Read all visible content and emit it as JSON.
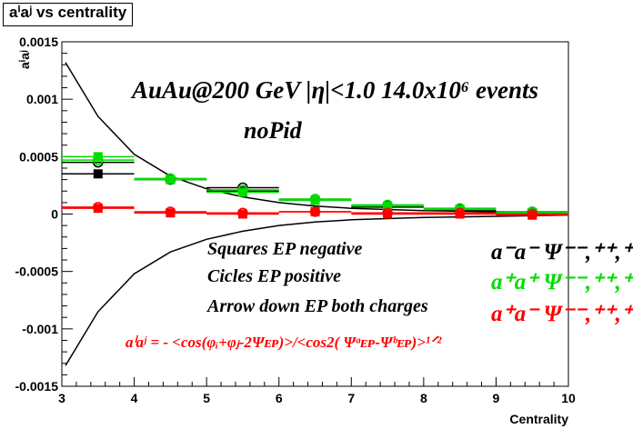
{
  "title": "aⁱaʲ vs centrality",
  "chart_data": {
    "type": "scatter",
    "title": "aⁱaʲ vs centrality",
    "xlabel": "Centrality",
    "ylabel": "aⁱaʲ",
    "xlim": [
      3,
      10
    ],
    "ylim": [
      -0.0015,
      0.0015
    ],
    "x_ticks": [
      "3",
      "4",
      "5",
      "6",
      "7",
      "8",
      "9",
      "10"
    ],
    "y_ticks": [
      "-0.0015",
      "-0.001",
      "-0.0005",
      "0",
      "0.0005",
      "0.001",
      "0.0015"
    ],
    "x": [
      3.5,
      4.5,
      5.5,
      6.5,
      7.5,
      8.5,
      9.5
    ],
    "series": [
      {
        "marker": "square",
        "color": "#000000",
        "values": [
          0.00035,
          0.0003,
          0.0002,
          0.00012,
          6e-05,
          3e-05,
          1e-05
        ]
      },
      {
        "marker": "circle",
        "color": "#000000",
        "values": [
          0.00045,
          0.0003,
          0.00023,
          0.00013,
          7e-05,
          4e-05,
          2e-05
        ]
      },
      {
        "marker": "square",
        "color": "#00dd00",
        "values": [
          0.0005,
          0.0003,
          0.00019,
          0.00012,
          7e-05,
          4e-05,
          1e-05
        ]
      },
      {
        "marker": "circle",
        "color": "#00dd00",
        "values": [
          0.00047,
          0.00031,
          0.00021,
          0.00013,
          8e-05,
          5e-05,
          2e-05
        ]
      },
      {
        "marker": "square",
        "color": "#ff0000",
        "values": [
          5e-05,
          1e-05,
          0.0,
          2e-05,
          0.0,
          0.0,
          -1e-05
        ]
      },
      {
        "marker": "circle",
        "color": "#ff0000",
        "values": [
          6e-05,
          2e-05,
          1e-05,
          2e-05,
          1e-05,
          1e-05,
          0.0
        ]
      }
    ],
    "curves": [
      {
        "color": "#000000",
        "points": [
          [
            3.05,
            0.00132
          ],
          [
            3.5,
            0.00085
          ],
          [
            4,
            0.00052
          ],
          [
            4.5,
            0.00033
          ],
          [
            5,
            0.00022
          ],
          [
            5.5,
            0.00015
          ],
          [
            6,
            0.0001
          ],
          [
            6.5,
            7e-05
          ],
          [
            7,
            5e-05
          ],
          [
            8,
            3e-05
          ],
          [
            9,
            2e-05
          ],
          [
            10,
            1e-05
          ]
        ]
      },
      {
        "color": "#000000",
        "points": [
          [
            3.05,
            -0.00132
          ],
          [
            3.5,
            -0.00085
          ],
          [
            4,
            -0.00052
          ],
          [
            4.5,
            -0.00033
          ],
          [
            5,
            -0.00022
          ],
          [
            5.5,
            -0.00015
          ],
          [
            6,
            -0.0001
          ],
          [
            6.5,
            -7e-05
          ],
          [
            7,
            -5e-05
          ],
          [
            8,
            -3e-05
          ],
          [
            9,
            -2e-05
          ],
          [
            10,
            -1e-05
          ]
        ]
      }
    ],
    "annotations": {
      "header": "AuAu@200 GeV |η|<1.0 14.0x10⁶ events",
      "subheader": "noPid",
      "note1": "Squares EP negative",
      "note2": "Cicles EP positive",
      "note3": "Arrow down EP both charges",
      "legend": [
        {
          "text": "a⁻a⁻  Ψ⁻⁻,⁺⁺,⁺⁻",
          "color": "#000000"
        },
        {
          "text": "a⁺a⁺  Ψ⁻⁻,⁺⁺,⁺⁻",
          "color": "#00dd00"
        },
        {
          "text": "a⁺a⁻  Ψ⁻⁻,⁺⁺,⁺⁻",
          "color": "#ff0000"
        }
      ],
      "formula": "aⁱaʲ = - <cos(φᵢ+φⱼ-2Ψᴇᴘ)>/<cos2( Ψᵃᴇᴘ-Ψᵇᴇᴘ)>¹ᐟ²"
    }
  }
}
